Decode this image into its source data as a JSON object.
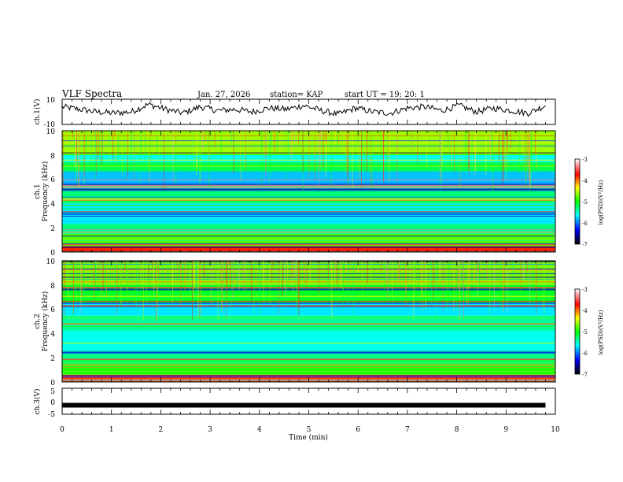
{
  "header": {
    "title": "VLF Spectra",
    "date": "Jan. 27, 2026",
    "station": "station= KAP",
    "start": "start  UT =   19: 20: 1"
  },
  "colors": {
    "axis": "#000000",
    "waveform": "#000000"
  },
  "chart_data": [
    {
      "type": "line",
      "name": "channel-1-waveform",
      "ylabel": "ch.1(V)",
      "ylim": [
        -10,
        10
      ],
      "yticks": [
        "10",
        "-10"
      ],
      "x": [
        0.0,
        0.35,
        0.7,
        1.05,
        1.4,
        1.75,
        2.1,
        2.45,
        2.8,
        3.15,
        3.5,
        3.85,
        4.2,
        4.55,
        4.9,
        5.25,
        5.6,
        5.95,
        6.3,
        6.65,
        7.0,
        7.35,
        7.7,
        8.05,
        8.4,
        8.75,
        9.1,
        9.45,
        9.8
      ],
      "values": [
        4,
        2,
        0,
        -1,
        0,
        6,
        2,
        -1,
        4,
        1,
        2,
        0,
        3,
        2,
        5,
        1,
        -2,
        3,
        0,
        -1,
        3,
        4,
        1,
        5,
        0,
        3,
        1,
        -1,
        5
      ]
    },
    {
      "type": "heatmap",
      "name": "channel-1-spectrogram",
      "ylabel_top": "ch.1",
      "ylabel": "Frequency (kHz)",
      "yticks": [
        "0",
        "2",
        "4",
        "6",
        "8",
        "10"
      ],
      "ylim": [
        0,
        10
      ],
      "colorbar": {
        "label": "log(PSD)(V²/Hz)",
        "ticks": [
          "-3",
          "-4",
          "-5",
          "-6",
          "-7"
        ]
      },
      "bands": [
        {
          "fmin": 0.0,
          "fmax": 0.5,
          "log_psd": -3.8
        },
        {
          "fmin": 0.5,
          "fmax": 1.5,
          "log_psd": -4.8
        },
        {
          "fmin": 1.5,
          "fmax": 2.3,
          "log_psd": -5.3
        },
        {
          "fmin": 2.3,
          "fmax": 4.0,
          "log_psd": -5.7
        },
        {
          "fmin": 4.0,
          "fmax": 5.2,
          "log_psd": -5.3
        },
        {
          "fmin": 5.2,
          "fmax": 6.6,
          "log_psd": -5.8
        },
        {
          "fmin": 6.6,
          "fmax": 7.4,
          "log_psd": -5.2
        },
        {
          "fmin": 7.4,
          "fmax": 8.0,
          "log_psd": -5.6
        },
        {
          "fmin": 8.0,
          "fmax": 10.0,
          "log_psd": -4.6
        }
      ]
    },
    {
      "type": "heatmap",
      "name": "channel-2-spectrogram",
      "ylabel_top": "ch.2",
      "ylabel": "Frequency (kHz)",
      "yticks": [
        "0",
        "2",
        "4",
        "6",
        "8",
        "10"
      ],
      "ylim": [
        0,
        10
      ],
      "colorbar": {
        "label": "log(PSD)(V²/Hz)",
        "ticks": [
          "-3",
          "-4",
          "-5",
          "-6",
          "-7"
        ]
      },
      "bands": [
        {
          "fmin": 0.0,
          "fmax": 0.6,
          "log_psd": -3.9
        },
        {
          "fmin": 0.6,
          "fmax": 1.6,
          "log_psd": -4.9
        },
        {
          "fmin": 1.6,
          "fmax": 2.6,
          "log_psd": -5.4
        },
        {
          "fmin": 2.6,
          "fmax": 4.2,
          "log_psd": -5.6
        },
        {
          "fmin": 4.2,
          "fmax": 5.5,
          "log_psd": -5.4
        },
        {
          "fmin": 5.5,
          "fmax": 6.5,
          "log_psd": -5.7
        },
        {
          "fmin": 6.5,
          "fmax": 8.0,
          "log_psd": -5.1
        },
        {
          "fmin": 8.0,
          "fmax": 10.0,
          "log_psd": -4.7
        }
      ]
    },
    {
      "type": "line",
      "name": "channel-3-waveform",
      "ylabel": "ch.3(V)",
      "ylim": [
        -5,
        5
      ],
      "yticks": [
        "5",
        "0",
        "-5"
      ],
      "x": [
        0.0,
        9.8
      ],
      "values": [
        -1.5,
        -1.5
      ]
    }
  ],
  "time_axis": {
    "label": "Time  (min)",
    "xlim": [
      0,
      10
    ],
    "ticks": [
      "0",
      "1",
      "2",
      "3",
      "4",
      "5",
      "6",
      "7",
      "8",
      "9",
      "10"
    ]
  }
}
